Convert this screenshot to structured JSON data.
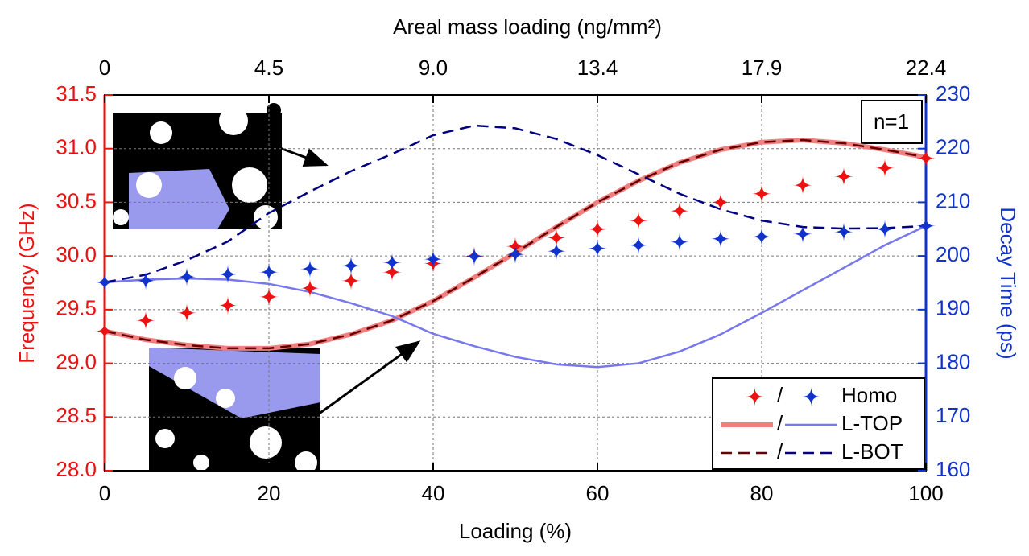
{
  "chart_data": {
    "type": "line",
    "x_label": "Loading (%)",
    "top_label": "Areal mass loading (ng/mm²)",
    "y_label": "Frequency (GHz)",
    "y2_label": "Decay Time (ps)",
    "annotation": "n=1",
    "x": [
      0,
      5,
      10,
      15,
      20,
      25,
      30,
      35,
      40,
      45,
      50,
      55,
      60,
      65,
      70,
      75,
      80,
      85,
      90,
      95,
      100
    ],
    "xlim": [
      0,
      100
    ],
    "xticks": [
      0,
      20,
      40,
      60,
      80,
      100
    ],
    "top_xlim": [
      0,
      22.4
    ],
    "top_xticks": [
      0,
      {
        "value": 4.48,
        "label": "4.5"
      },
      {
        "value": 8.96,
        "label": "9.0"
      },
      {
        "value": 13.44,
        "label": "13.4"
      },
      {
        "value": 17.92,
        "label": "17.9"
      },
      22.4
    ],
    "ylim": [
      28,
      31.5
    ],
    "yticks": [
      {
        "value": 28,
        "label": "28.0"
      },
      28.5,
      {
        "value": 29,
        "label": "29.0"
      },
      29.5,
      {
        "value": 30,
        "label": "30.0"
      },
      30.5,
      {
        "value": 31,
        "label": "31.0"
      },
      31.5
    ],
    "y2lim": [
      160,
      230
    ],
    "y2ticks": [
      160,
      170,
      180,
      190,
      200,
      210,
      220,
      230
    ],
    "grid": true,
    "legend": "lower right",
    "series": [
      {
        "name": "/",
        "color": "#ee1111",
        "style": "markers",
        "values": [
          29.3,
          29.4,
          29.47,
          29.54,
          29.62,
          29.7,
          29.77,
          29.85,
          29.93,
          30.0,
          30.09,
          30.17,
          30.25,
          30.33,
          30.42,
          30.5,
          30.58,
          30.66,
          30.74,
          30.82,
          30.91
        ]
      },
      {
        "name": "Homo",
        "color": "#1133cc",
        "style": "markers",
        "axis": "y2",
        "values": [
          195.1,
          195.4,
          196.1,
          196.6,
          197,
          197.6,
          198.2,
          198.8,
          199.4,
          199.9,
          200.3,
          200.9,
          201.4,
          202,
          202.6,
          203.2,
          203.6,
          204.1,
          204.5,
          205,
          205.6
        ]
      },
      {
        "name": "/",
        "color": "#f08080",
        "style": "solid",
        "values": [
          29.3,
          29.22,
          29.17,
          29.14,
          29.14,
          29.18,
          29.27,
          29.4,
          29.58,
          29.8,
          30.03,
          30.27,
          30.5,
          30.7,
          30.87,
          30.99,
          31.06,
          31.08,
          31.05,
          30.99,
          30.92
        ]
      },
      {
        "name": "L-TOP",
        "color": "#7777ee",
        "style": "solid",
        "axis": "y2",
        "values": [
          195.1,
          195.6,
          195.8,
          195.6,
          194.8,
          193.3,
          191.2,
          188.8,
          185.5,
          183.2,
          181.2,
          179.8,
          179.3,
          180.0,
          182.2,
          185.4,
          189.4,
          193.6,
          197.8,
          202,
          205.6
        ]
      },
      {
        "name": "/",
        "color": "#660000",
        "style": "dashed",
        "values": [
          29.3,
          29.22,
          29.17,
          29.14,
          29.14,
          29.18,
          29.27,
          29.4,
          29.58,
          29.8,
          30.03,
          30.27,
          30.5,
          30.7,
          30.87,
          30.99,
          31.06,
          31.08,
          31.05,
          30.99,
          30.92
        ]
      },
      {
        "name": "L-BOT",
        "color": "#000080",
        "style": "dashed",
        "axis": "y2",
        "values": [
          195.1,
          196.5,
          199.2,
          202.7,
          208,
          212,
          215.8,
          219,
          222.5,
          224.3,
          223.8,
          221.8,
          218.8,
          215.2,
          211.6,
          208.7,
          206.6,
          205.4,
          205.1,
          205.2,
          205.6
        ]
      }
    ]
  }
}
